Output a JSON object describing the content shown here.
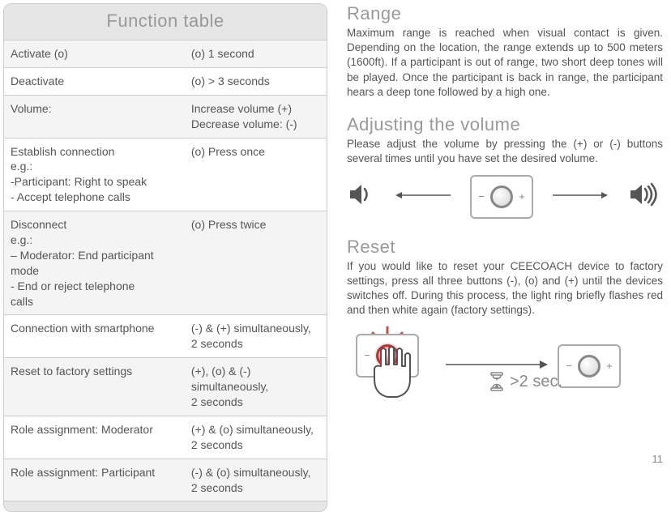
{
  "page_number": "11",
  "function_table": {
    "title": "Function table",
    "rows": [
      {
        "func": "Activate  (o)",
        "action": "(o) 1 second"
      },
      {
        "func": "Deactivate",
        "action": "(o) > 3 seconds"
      },
      {
        "func": "Volume:",
        "action": "Increase volume  (+)\nDecrease volume: (-)"
      },
      {
        "func": "Establish connection\ne.g.:\n -Participant: Right to speak\n- Accept telephone calls",
        "action": "(o) Press once"
      },
      {
        "func": "Disconnect\n e.g.:\n – Moderator: End participant\n     mode\n-  End or reject telephone\n     calls",
        "action": "(o)  Press twice"
      },
      {
        "func": "Connection with smartphone",
        "action": "(-) & (+) simultaneously,\n2 seconds"
      },
      {
        "func": "Reset to factory settings",
        "action": "(+), (o) &  (-) simultaneously,\n2 seconds"
      },
      {
        "func": "Role assignment: Moderator",
        "action": "(+) & (o) simultaneously,\n2 seconds"
      },
      {
        "func": "Role assignment: Participant",
        "action": "(-)  & (o) simultaneously,\n2 seconds"
      }
    ]
  },
  "sections": {
    "range": {
      "heading": "Range",
      "body": "Maximum range is reached when visual contact is given. Depending on the location, the range extends up to 500 meters (1600ft). If a participant is out of range, two short deep tones will be played. Once the participant is back in range, the participant hears a deep tone followed by a high one."
    },
    "volume": {
      "heading": "Adjusting the volume",
      "body": "Please adjust the volume by pressing the (+) or (-) buttons several times until you have set the desired volume."
    },
    "reset": {
      "heading": "Reset",
      "body": "If you would like to reset your CEECOACH device to factory settings, press all three buttons (-), (o) and (+) until the devices switches off. During this process, the light ring briefly flashes red and then white again (factory settings).",
      "timer_label": ">2 sec."
    }
  },
  "device": {
    "minus": "−",
    "plus": "+"
  },
  "colors": {
    "text": "#555555",
    "heading": "#999999",
    "border": "#cccccc",
    "row_alt": "#f4f4f4",
    "header_bg": "#e6e6e6",
    "accent_red": "#b33333"
  }
}
